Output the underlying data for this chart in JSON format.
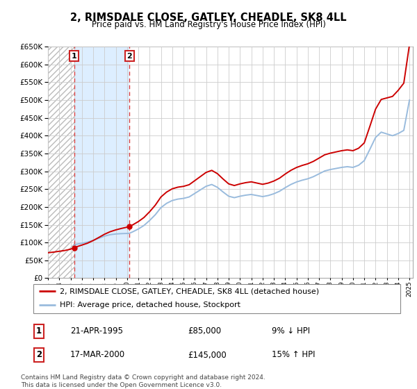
{
  "title": "2, RIMSDALE CLOSE, GATLEY, CHEADLE, SK8 4LL",
  "subtitle": "Price paid vs. HM Land Registry's House Price Index (HPI)",
  "legend_label_red": "2, RIMSDALE CLOSE, GATLEY, CHEADLE, SK8 4LL (detached house)",
  "legend_label_blue": "HPI: Average price, detached house, Stockport",
  "sale1_date_num": 1995.31,
  "sale1_price": 85000,
  "sale1_label": "21-APR-1995",
  "sale1_hpi_pct": "9% ↓ HPI",
  "sale2_date_num": 2000.21,
  "sale2_price": 145000,
  "sale2_label": "17-MAR-2000",
  "sale2_hpi_pct": "15% ↑ HPI",
  "footer": "Contains HM Land Registry data © Crown copyright and database right 2024.\nThis data is licensed under the Open Government Licence v3.0.",
  "xmin": 1993.0,
  "xmax": 2025.3,
  "ymin": 0,
  "ymax": 650000,
  "color_red": "#cc0000",
  "color_blue": "#99bbdd",
  "color_dashed": "#dd4444",
  "shade_color": "#ddeeff",
  "bg_color": "#f5f5f5"
}
